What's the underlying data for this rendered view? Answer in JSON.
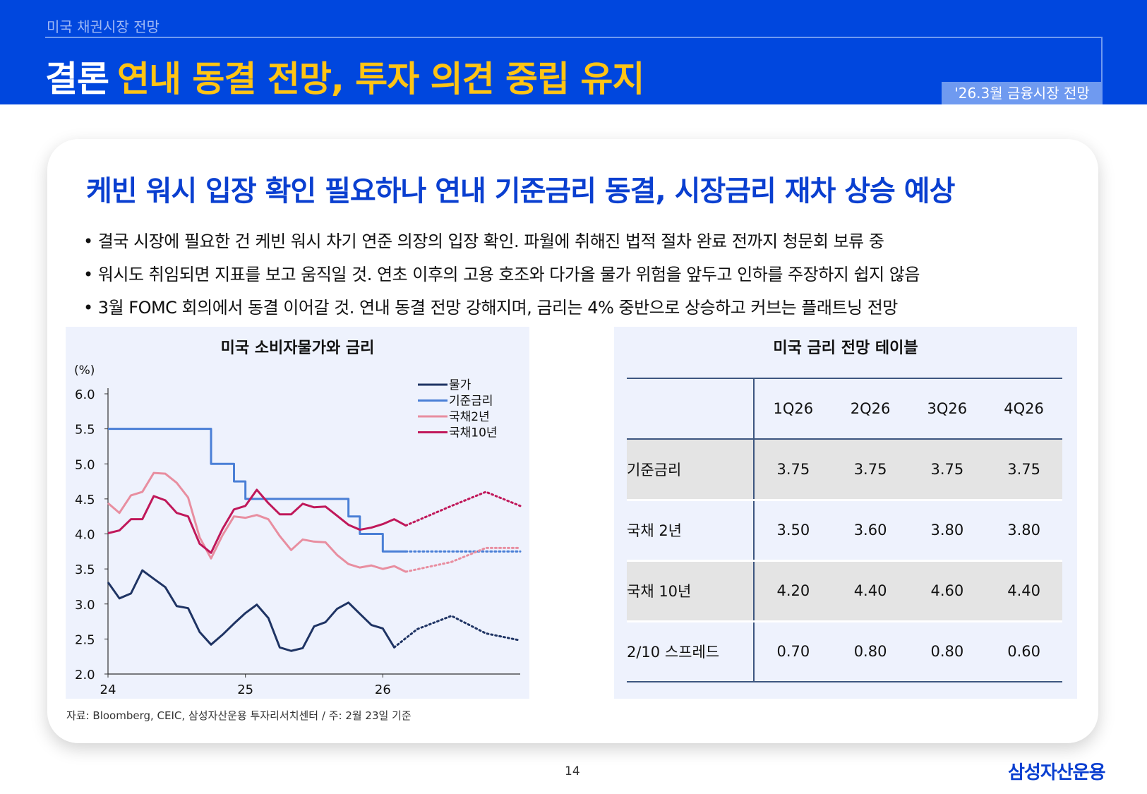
{
  "header": {
    "section": "미국 채권시장 전망",
    "title_white": "결론",
    "title_yellow": "연내 동결 전망, 투자 의견 중립 유지",
    "badge": "'26.3월 금융시장 전망"
  },
  "card": {
    "heading": "케빈 워시 입장 확인 필요하나 연내 기준금리 동결, 시장금리 재차 상승 예상",
    "bullets": [
      "• 결국 시장에 필요한 건 케빈 워시 차기 연준 의장의 입장 확인. 파월에 취해진 법적 절차 완료 전까지 청문회 보류 중",
      "• 워시도 취임되면 지표를 보고 움직일 것. 연초 이후의 고용 호조와 다가올 물가 위험을 앞두고 인하를 주장하지 쉽지 않음",
      "• 3월 FOMC 회의에서 동결 이어갈 것. 연내 동결 전망 강해지며, 금리는 4% 중반으로 상승하고 커브는 플래트닝 전망"
    ],
    "source": "자료: Bloomberg, CEIC, 삼성자산운용 투자리서치센터 / 주: 2월 23일 기준"
  },
  "table": {
    "title": "미국 금리 전망 테이블",
    "columns": [
      "",
      "1Q26",
      "2Q26",
      "3Q26",
      "4Q26"
    ],
    "rows": [
      [
        "기준금리",
        "3.75",
        "3.75",
        "3.75",
        "3.75"
      ],
      [
        "국채 2년",
        "3.50",
        "3.60",
        "3.80",
        "3.80"
      ],
      [
        "국채 10년",
        "4.20",
        "4.40",
        "4.60",
        "4.40"
      ],
      [
        "2/10 스프레드",
        "0.70",
        "0.80",
        "0.80",
        "0.60"
      ]
    ]
  },
  "footer": {
    "page": "14",
    "logo": "삼성자산운용"
  },
  "chart_data": {
    "type": "line",
    "title": "미국 소비자물가와 금리",
    "ylabel": "(%)",
    "ylim": [
      2.0,
      6.0
    ],
    "yticks": [
      "6.0",
      "5.5",
      "5.0",
      "4.5",
      "4.0",
      "3.5",
      "3.0",
      "2.5",
      "2.0"
    ],
    "xlim": [
      24,
      27
    ],
    "xticks": [
      "24",
      "25",
      "26"
    ],
    "grid": false,
    "legend": "top-right",
    "series": [
      {
        "name": "물가",
        "color": "#1f3464",
        "actual_x": [
          24,
          24.083,
          24.167,
          24.25,
          24.333,
          24.417,
          24.5,
          24.583,
          24.667,
          24.75,
          24.833,
          24.917,
          25,
          25.083,
          25.167,
          25.25,
          25.333,
          25.417,
          25.5,
          25.583,
          25.667,
          25.75,
          25.833,
          25.917,
          26,
          26.083
        ],
        "actual_y": [
          3.31,
          3.08,
          3.15,
          3.48,
          3.36,
          3.24,
          2.97,
          2.94,
          2.6,
          2.42,
          2.56,
          2.72,
          2.87,
          2.99,
          2.8,
          2.38,
          2.33,
          2.37,
          2.68,
          2.74,
          2.93,
          3.02,
          2.86,
          2.7,
          2.65,
          2.38
        ],
        "forecast_x": [
          26.083,
          26.25,
          26.5,
          26.75,
          27
        ],
        "forecast_y": [
          2.38,
          2.64,
          2.83,
          2.58,
          2.48
        ]
      },
      {
        "name": "기준금리",
        "color": "#4a7fd6",
        "step": true,
        "actual_x": [
          24,
          24.75,
          24.917,
          25,
          25.75,
          25.833,
          26,
          26.167
        ],
        "actual_y": [
          5.5,
          5.0,
          4.75,
          4.5,
          4.25,
          4.0,
          3.75,
          3.75
        ],
        "forecast_x": [
          26.167,
          27
        ],
        "forecast_y": [
          3.75,
          3.75
        ]
      },
      {
        "name": "국채2년",
        "color": "#e88ea0",
        "actual_x": [
          24,
          24.083,
          24.167,
          24.25,
          24.333,
          24.417,
          24.5,
          24.583,
          24.667,
          24.75,
          24.833,
          24.917,
          25,
          25.083,
          25.167,
          25.25,
          25.333,
          25.417,
          25.5,
          25.583,
          25.667,
          25.75,
          25.833,
          25.917,
          26,
          26.083,
          26.167
        ],
        "actual_y": [
          4.44,
          4.3,
          4.55,
          4.6,
          4.87,
          4.86,
          4.73,
          4.52,
          3.95,
          3.65,
          3.98,
          4.25,
          4.23,
          4.27,
          4.21,
          3.97,
          3.77,
          3.92,
          3.89,
          3.88,
          3.7,
          3.57,
          3.52,
          3.55,
          3.5,
          3.54,
          3.46
        ],
        "forecast_x": [
          26.167,
          26.5,
          26.75,
          27
        ],
        "forecast_y": [
          3.46,
          3.6,
          3.8,
          3.8
        ]
      },
      {
        "name": "국채10년",
        "color": "#c0185a",
        "actual_x": [
          24,
          24.083,
          24.167,
          24.25,
          24.333,
          24.417,
          24.5,
          24.583,
          24.667,
          24.75,
          24.833,
          24.917,
          25,
          25.083,
          25.167,
          25.25,
          25.333,
          25.417,
          25.5,
          25.583,
          25.667,
          25.75,
          25.833,
          25.917,
          26,
          26.083,
          26.167
        ],
        "actual_y": [
          4.01,
          4.05,
          4.21,
          4.21,
          4.54,
          4.48,
          4.3,
          4.25,
          3.86,
          3.73,
          4.07,
          4.35,
          4.4,
          4.63,
          4.44,
          4.28,
          4.28,
          4.43,
          4.38,
          4.39,
          4.26,
          4.13,
          4.06,
          4.09,
          4.14,
          4.21,
          4.12
        ],
        "forecast_x": [
          26.167,
          26.5,
          26.75,
          27
        ],
        "forecast_y": [
          4.12,
          4.4,
          4.6,
          4.4
        ]
      }
    ]
  }
}
